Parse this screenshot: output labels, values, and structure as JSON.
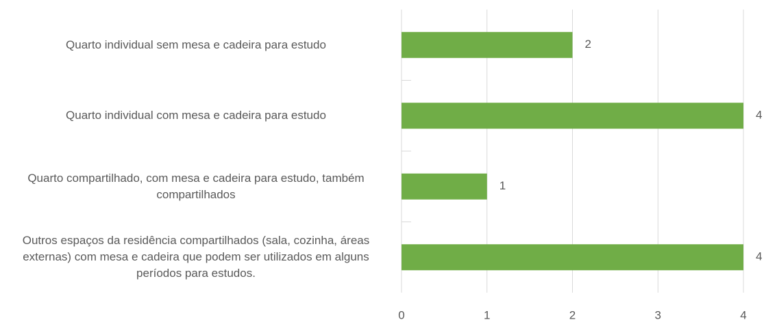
{
  "chart_data": {
    "type": "bar",
    "orientation": "horizontal",
    "categories": [
      "Quarto individual sem mesa e cadeira para estudo",
      "Quarto individual com mesa e cadeira para estudo",
      "Quarto compartilhado, com mesa e cadeira para estudo, também compartilhados",
      "Outros espaços da residência compartilhados (sala, cozinha, áreas externas) com mesa e cadeira que podem ser utilizados em alguns períodos para estudos."
    ],
    "values": [
      2,
      4,
      1,
      4
    ],
    "color": "#70ad47",
    "xlim": [
      0,
      4
    ],
    "xticks": [
      0,
      1,
      2,
      3,
      4
    ],
    "grid": true
  }
}
